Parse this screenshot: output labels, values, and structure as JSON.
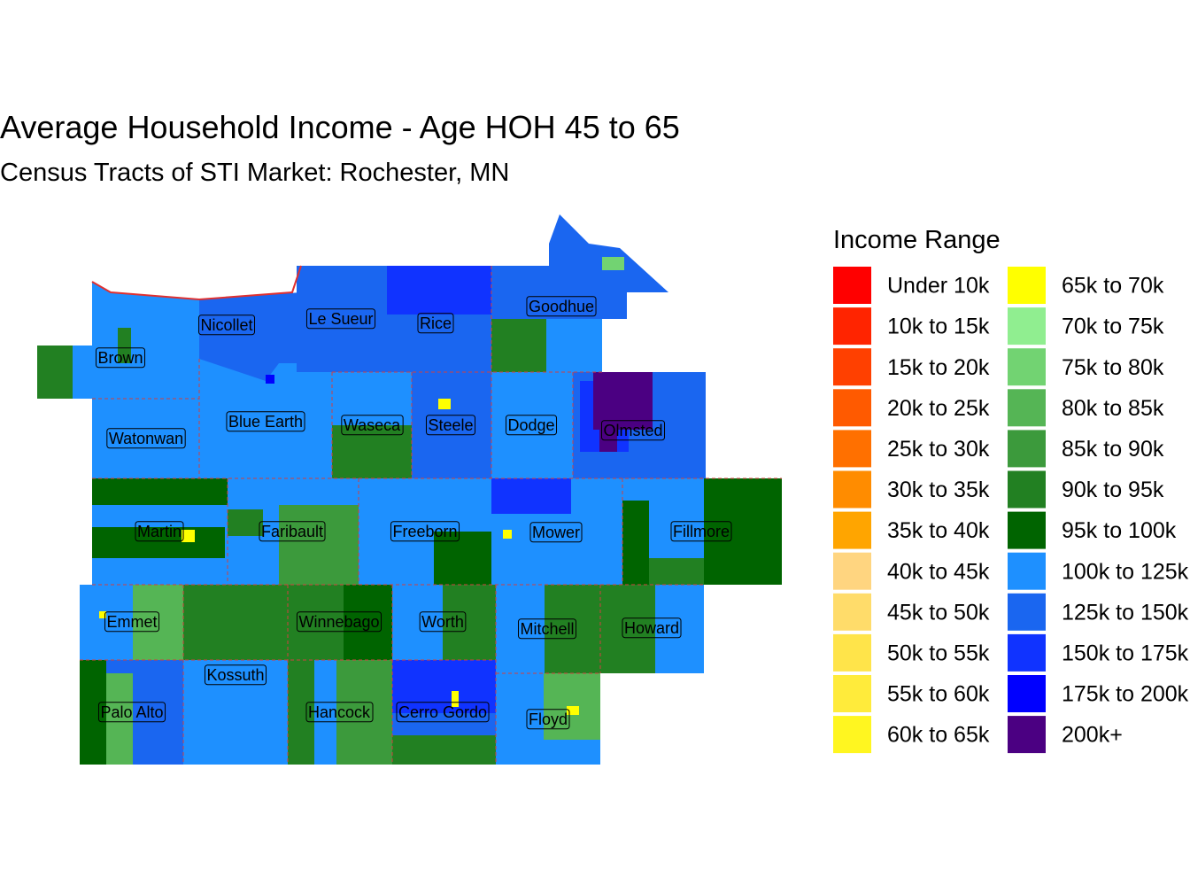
{
  "title": "Average Household Income - Age HOH 45 to 65",
  "subtitle": "Census Tracts of STI Market: Rochester, MN",
  "legend": {
    "title": "Income Range",
    "items": [
      {
        "label": "Under 10k",
        "color": "#FF0000"
      },
      {
        "label": "10k to 15k",
        "color": "#FF2400"
      },
      {
        "label": "15k to 20k",
        "color": "#FF4000"
      },
      {
        "label": "20k to 25k",
        "color": "#FF5A00"
      },
      {
        "label": "25k to 30k",
        "color": "#FF7000"
      },
      {
        "label": "30k to 35k",
        "color": "#FF8C00"
      },
      {
        "label": "35k to 40k",
        "color": "#FFA500"
      },
      {
        "label": "40k to 45k",
        "color": "#FFD580"
      },
      {
        "label": "45k to 50k",
        "color": "#FFDC6A"
      },
      {
        "label": "50k to 55k",
        "color": "#FFE44A"
      },
      {
        "label": "55k to 60k",
        "color": "#FFEB3B"
      },
      {
        "label": "60k to 65k",
        "color": "#FFF620"
      },
      {
        "label": "65k to 70k",
        "color": "#FFFF00"
      },
      {
        "label": "70k to 75k",
        "color": "#90EE90"
      },
      {
        "label": "75k to 80k",
        "color": "#72D372"
      },
      {
        "label": "80k to 85k",
        "color": "#55B555"
      },
      {
        "label": "85k to 90k",
        "color": "#3C9A3C"
      },
      {
        "label": "90k to 95k",
        "color": "#228022"
      },
      {
        "label": "95k to 100k",
        "color": "#006400"
      },
      {
        "label": "100k to 125k",
        "color": "#1E90FF"
      },
      {
        "label": "125k to 150k",
        "color": "#1A66F0"
      },
      {
        "label": "150k to 175k",
        "color": "#1033FF"
      },
      {
        "label": "175k to 200k",
        "color": "#0000FF"
      },
      {
        "label": "200k+",
        "color": "#4B0082"
      }
    ]
  },
  "counties": [
    {
      "label": "Brown"
    },
    {
      "label": "Nicollet"
    },
    {
      "label": "Le Sueur"
    },
    {
      "label": "Rice"
    },
    {
      "label": "Goodhue"
    },
    {
      "label": "Watonwan"
    },
    {
      "label": "Blue Earth"
    },
    {
      "label": "Waseca"
    },
    {
      "label": "Steele"
    },
    {
      "label": "Dodge"
    },
    {
      "label": "Olmsted"
    },
    {
      "label": "Martin"
    },
    {
      "label": "Faribault"
    },
    {
      "label": "Freeborn"
    },
    {
      "label": "Mower"
    },
    {
      "label": "Fillmore"
    },
    {
      "label": "Emmet"
    },
    {
      "label": "Winnebago"
    },
    {
      "label": "Worth"
    },
    {
      "label": "Mitchell"
    },
    {
      "label": "Howard"
    },
    {
      "label": "Kossuth"
    },
    {
      "label": "Palo Alto"
    },
    {
      "label": "Hancock"
    },
    {
      "label": "Cerro Gordo"
    },
    {
      "label": "Floyd"
    }
  ]
}
